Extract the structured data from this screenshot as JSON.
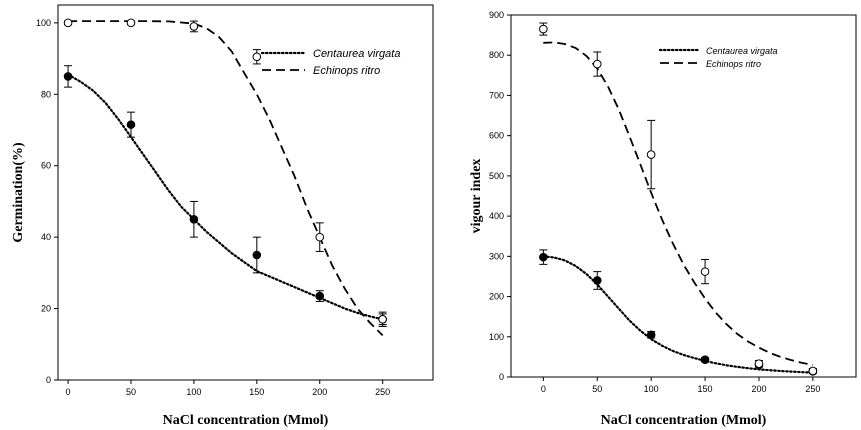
{
  "chart_data": [
    {
      "type": "scatter",
      "title": "",
      "xlabel": "NaCl concentration (Mmol)",
      "ylabel": "Germination(%)",
      "xlim": [
        0,
        250
      ],
      "ylim": [
        0,
        105
      ],
      "xticks": [
        0,
        50,
        100,
        150,
        200,
        250
      ],
      "yticks": [
        0,
        20,
        40,
        60,
        80,
        100
      ],
      "legend_position": "top-right",
      "grid": false,
      "series": [
        {
          "name": "Centaurea virgata",
          "marker": "filled-circle",
          "line": "dotted",
          "x": [
            0,
            50,
            100,
            150,
            200,
            250
          ],
          "y": [
            85,
            71.5,
            45,
            35,
            23.5,
            17
          ],
          "err": [
            3,
            3.5,
            5,
            5,
            1.5,
            1.5
          ],
          "fit": {
            "x": [
              0,
              10,
              20,
              30,
              40,
              50,
              60,
              70,
              80,
              90,
              100,
              110,
              120,
              130,
              140,
              150,
              160,
              170,
              180,
              190,
              200,
              210,
              220,
              230,
              240,
              250
            ],
            "y": [
              85.5,
              83.5,
              81,
              77.5,
              73,
              68,
              63,
              58,
              53,
              48.5,
              45,
              41.5,
              38.5,
              35.5,
              33,
              30.5,
              29,
              27.5,
              26,
              24.5,
              23,
              21.5,
              20,
              18.8,
              17.8,
              17
            ]
          }
        },
        {
          "name": "Echinops ritro",
          "marker": "open-circle",
          "line": "dashed",
          "x": [
            0,
            50,
            100,
            150,
            200,
            250
          ],
          "y": [
            100,
            100,
            99,
            90.5,
            40,
            17
          ],
          "err": [
            0.5,
            0.5,
            1.5,
            2,
            4,
            2
          ],
          "fit": {
            "x": [
              0,
              20,
              40,
              60,
              80,
              100,
              110,
              120,
              130,
              140,
              150,
              160,
              170,
              180,
              190,
              200,
              210,
              220,
              230,
              240,
              250
            ],
            "y": [
              100.5,
              100.5,
              100.5,
              100.5,
              100.4,
              99.8,
              98.5,
              96,
              92,
              86,
              80,
              73,
              65,
              57,
              48,
              40,
              32,
              25.5,
              20,
              16,
              12.5
            ]
          }
        }
      ]
    },
    {
      "type": "scatter",
      "title": "",
      "xlabel": "NaCl concentration (Mmol)",
      "ylabel": "vigour index",
      "xlim": [
        0,
        290
      ],
      "ylim": [
        0,
        900
      ],
      "xticks": [
        0,
        50,
        100,
        150,
        200,
        250
      ],
      "yticks": [
        0,
        100,
        200,
        300,
        400,
        500,
        600,
        700,
        800,
        900
      ],
      "legend_position": "top-right",
      "grid": false,
      "series": [
        {
          "name": "Centaurea virgata",
          "marker": "filled-circle",
          "line": "dotted",
          "x": [
            0,
            50,
            100,
            150,
            200,
            250
          ],
          "y": [
            298,
            240,
            105,
            43,
            30,
            14
          ],
          "err": [
            18,
            22,
            8,
            5,
            4,
            3
          ],
          "fit": {
            "x": [
              0,
              10,
              20,
              30,
              40,
              50,
              60,
              70,
              80,
              90,
              100,
              110,
              120,
              130,
              140,
              150,
              160,
              170,
              180,
              190,
              200,
              210,
              220,
              230,
              240,
              250
            ],
            "y": [
              300,
              297,
              290,
              276,
              256,
              230,
              200,
              170,
              140,
              115,
              94,
              78,
              65,
              55,
              47,
              40,
              34,
              29,
              25,
              22,
              19,
              17,
              15,
              13.5,
              12,
              11
            ]
          }
        },
        {
          "name": "Echinops ritro",
          "marker": "open-circle",
          "line": "dashed",
          "x": [
            0,
            50,
            100,
            150,
            200,
            250
          ],
          "y": [
            865,
            778,
            553,
            262,
            33,
            15
          ],
          "err": [
            15,
            30,
            85,
            30,
            8,
            6
          ],
          "fit": {
            "x": [
              0,
              10,
              20,
              30,
              40,
              50,
              60,
              70,
              80,
              90,
              100,
              110,
              120,
              130,
              140,
              150,
              160,
              170,
              180,
              190,
              200,
              210,
              220,
              230,
              240,
              250
            ],
            "y": [
              831,
              832,
              828,
              818,
              798,
              767,
              722,
              665,
              598,
              528,
              458,
              392,
              333,
              280,
              235,
              195,
              160,
              131,
              107,
              88,
              73,
              60,
              50,
              42,
              35,
              30
            ]
          }
        }
      ]
    }
  ]
}
